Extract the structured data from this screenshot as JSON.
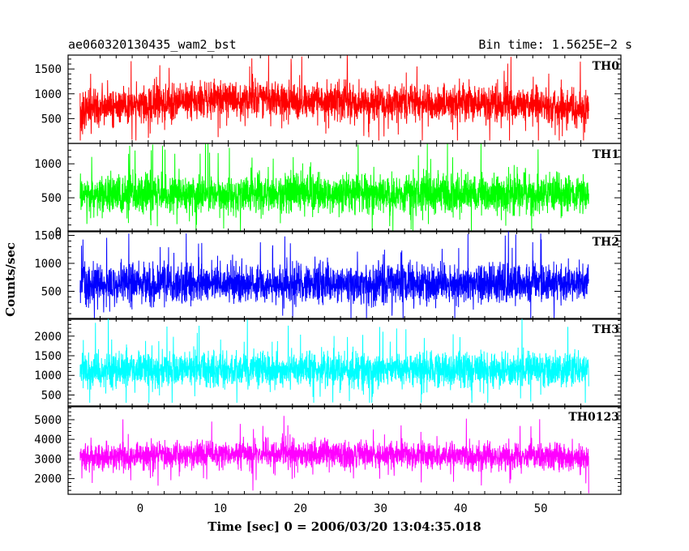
{
  "header": {
    "left": "ae060320130435_wam2_bst",
    "right": "Bin time: 1.5625E−2 s"
  },
  "chart_data": {
    "type": "line",
    "title": "ae060320130435_wam2_bst",
    "subtitle": "Bin time: 1.5625E−2 s",
    "xlabel": "Time [sec] 0 = 2006/03/20 13:04:35.018",
    "ylabel": "Counts/sec",
    "xlim": [
      -9,
      60
    ],
    "x_ticks": [
      0,
      10,
      20,
      30,
      40,
      50
    ],
    "data_x_range": [
      -7.5,
      56
    ],
    "grid": false,
    "panels": [
      {
        "name": "TH0",
        "color": "#ff0000",
        "ylim": [
          0,
          1780
        ],
        "y_ticks": [
          500,
          1000,
          1500
        ],
        "y_tick_labels": [
          "500",
          "1000",
          "1500"
        ],
        "x_profile": [
          -7.5,
          0,
          10,
          20,
          30,
          40,
          50,
          56
        ],
        "mean_profile": [
          650,
          760,
          900,
          860,
          820,
          790,
          760,
          700
        ],
        "spread": 330,
        "max_value": 1780,
        "min_value": 60
      },
      {
        "name": "TH1",
        "color": "#00ff00",
        "ylim": [
          0,
          1300
        ],
        "y_ticks": [
          0,
          500,
          1000
        ],
        "y_tick_labels": [
          "0",
          "500",
          "1000"
        ],
        "x_profile": [
          -7.5,
          56
        ],
        "mean_profile": [
          560,
          560
        ],
        "spread": 260,
        "max_value": 1300,
        "min_value": 10
      },
      {
        "name": "TH2",
        "color": "#0000ff",
        "ylim": [
          0,
          1580
        ],
        "y_ticks": [
          500,
          1000,
          1500
        ],
        "y_tick_labels": [
          "500",
          "1000",
          "1500"
        ],
        "x_profile": [
          -7.5,
          56
        ],
        "mean_profile": [
          640,
          640
        ],
        "spread": 310,
        "max_value": 1580,
        "min_value": 20
      },
      {
        "name": "TH3",
        "color": "#00ffff",
        "ylim": [
          200,
          2450
        ],
        "y_ticks": [
          500,
          1000,
          1500,
          2000
        ],
        "y_tick_labels": [
          "500",
          "1000",
          "1500",
          "2000"
        ],
        "x_profile": [
          -7.5,
          56
        ],
        "mean_profile": [
          1150,
          1150
        ],
        "spread": 400,
        "max_value": 2450,
        "min_value": 300
      },
      {
        "name": "TH0123",
        "color": "#ff00ff",
        "ylim": [
          1200,
          5700
        ],
        "y_ticks": [
          2000,
          3000,
          4000,
          5000
        ],
        "y_tick_labels": [
          "2000",
          "3000",
          "4000",
          "5000"
        ],
        "x_profile": [
          -7.5,
          0,
          10,
          20,
          30,
          40,
          50,
          56
        ],
        "mean_profile": [
          3000,
          3150,
          3300,
          3250,
          3200,
          3150,
          3100,
          3000
        ],
        "spread": 620,
        "max_value": 5600,
        "min_value": 1250
      }
    ]
  }
}
